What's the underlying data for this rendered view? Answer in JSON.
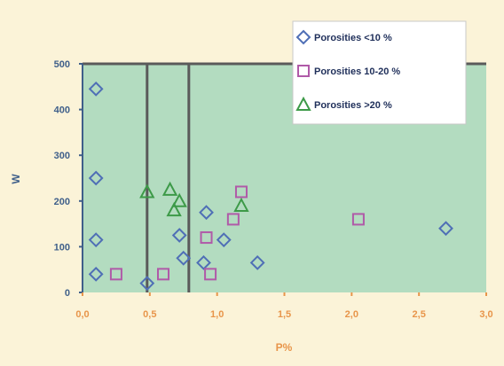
{
  "colors": {
    "background": "#fbf3d8",
    "plot_area": "#b3dcc0",
    "plot_border": "#5a5a5a",
    "series_1": "#4f6fb6",
    "series_2": "#b05aa8",
    "series_3": "#3d9a48",
    "y_text": "#3f5f8a",
    "x_text": "#e8954a"
  },
  "chart_data": {
    "type": "scatter",
    "title": "",
    "xlabel": "P%",
    "ylabel": "W",
    "xlim": [
      0,
      3.0
    ],
    "ylim": [
      0,
      500
    ],
    "x_ticks": [
      "0,0",
      "0,5",
      "1,0",
      "1,5",
      "2,0",
      "2,5",
      "3,0"
    ],
    "y_ticks": [
      "0",
      "100",
      "200",
      "300",
      "400",
      "500"
    ],
    "grid": false,
    "legend_position": "top-right",
    "vertical_lines": [
      0.48,
      0.79
    ],
    "series": [
      {
        "name": "Porosities <10 %",
        "marker": "diamond",
        "color": "#4f6fb6",
        "points": [
          {
            "x": 0.1,
            "y": 445
          },
          {
            "x": 0.1,
            "y": 250
          },
          {
            "x": 0.1,
            "y": 115
          },
          {
            "x": 0.1,
            "y": 40
          },
          {
            "x": 0.48,
            "y": 20
          },
          {
            "x": 0.72,
            "y": 125
          },
          {
            "x": 0.75,
            "y": 75
          },
          {
            "x": 0.92,
            "y": 175
          },
          {
            "x": 0.9,
            "y": 65
          },
          {
            "x": 1.05,
            "y": 115
          },
          {
            "x": 1.3,
            "y": 65
          },
          {
            "x": 2.7,
            "y": 140
          }
        ]
      },
      {
        "name": "Porosities 10-20 %",
        "marker": "square",
        "color": "#b05aa8",
        "points": [
          {
            "x": 0.25,
            "y": 40
          },
          {
            "x": 0.6,
            "y": 40
          },
          {
            "x": 0.95,
            "y": 40
          },
          {
            "x": 0.92,
            "y": 120
          },
          {
            "x": 1.12,
            "y": 160
          },
          {
            "x": 1.18,
            "y": 220
          },
          {
            "x": 2.05,
            "y": 160
          }
        ]
      },
      {
        "name": "Porosities >20 %",
        "marker": "triangle",
        "color": "#3d9a48",
        "points": [
          {
            "x": 0.48,
            "y": 220
          },
          {
            "x": 0.65,
            "y": 225
          },
          {
            "x": 0.72,
            "y": 200
          },
          {
            "x": 0.68,
            "y": 180
          },
          {
            "x": 1.18,
            "y": 190
          }
        ]
      }
    ]
  }
}
